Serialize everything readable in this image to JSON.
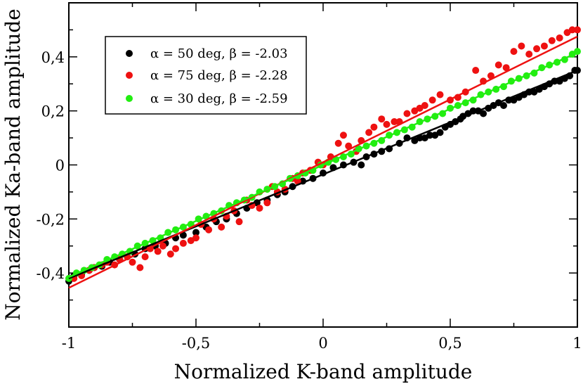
{
  "chart_data": {
    "type": "scatter",
    "title": "",
    "xlabel": "Normalized K-band amplitude",
    "ylabel": "Normalized Ka-band amplitude",
    "xlim": [
      -1,
      1
    ],
    "ylim": [
      -0.6,
      0.6
    ],
    "x_ticks": [
      -1,
      -0.5,
      0,
      0.5,
      1
    ],
    "x_tick_labels": [
      "-1",
      "-0,5",
      "0",
      "0,5",
      "1"
    ],
    "y_ticks": [
      -0.4,
      -0.2,
      0,
      0.2,
      0.4
    ],
    "y_tick_labels": [
      "-0,4",
      "-0,2",
      "0",
      "0,2",
      "0,4"
    ],
    "grid": false,
    "legend_position": "top-left",
    "series": [
      {
        "name": "α = 50 deg, β = -2.03",
        "color": "#000000",
        "fit": {
          "slope": 0.385,
          "intercept": -0.035
        },
        "points": [
          [
            -1.0,
            -0.43
          ],
          [
            -0.98,
            -0.41
          ],
          [
            -0.95,
            -0.405
          ],
          [
            -0.92,
            -0.39
          ],
          [
            -0.9,
            -0.38
          ],
          [
            -0.87,
            -0.375
          ],
          [
            -0.84,
            -0.36
          ],
          [
            -0.8,
            -0.35
          ],
          [
            -0.77,
            -0.34
          ],
          [
            -0.74,
            -0.33
          ],
          [
            -0.7,
            -0.31
          ],
          [
            -0.66,
            -0.3
          ],
          [
            -0.62,
            -0.29
          ],
          [
            -0.58,
            -0.27
          ],
          [
            -0.55,
            -0.26
          ],
          [
            -0.5,
            -0.25
          ],
          [
            -0.46,
            -0.23
          ],
          [
            -0.42,
            -0.21
          ],
          [
            -0.38,
            -0.2
          ],
          [
            -0.34,
            -0.18
          ],
          [
            -0.3,
            -0.16
          ],
          [
            -0.26,
            -0.14
          ],
          [
            -0.22,
            -0.13
          ],
          [
            -0.18,
            -0.11
          ],
          [
            -0.15,
            -0.1
          ],
          [
            -0.12,
            -0.08
          ],
          [
            -0.08,
            -0.06
          ],
          [
            -0.04,
            -0.05
          ],
          [
            0.0,
            -0.03
          ],
          [
            0.04,
            -0.01
          ],
          [
            0.08,
            0.0
          ],
          [
            0.12,
            0.01
          ],
          [
            0.15,
            0.0
          ],
          [
            0.17,
            0.03
          ],
          [
            0.2,
            0.04
          ],
          [
            0.23,
            0.05
          ],
          [
            0.26,
            0.06
          ],
          [
            0.3,
            0.08
          ],
          [
            0.33,
            0.1
          ],
          [
            0.36,
            0.09
          ],
          [
            0.38,
            0.1
          ],
          [
            0.4,
            0.1
          ],
          [
            0.42,
            0.11
          ],
          [
            0.44,
            0.11
          ],
          [
            0.46,
            0.12
          ],
          [
            0.48,
            0.14
          ],
          [
            0.5,
            0.15
          ],
          [
            0.52,
            0.16
          ],
          [
            0.54,
            0.17
          ],
          [
            0.55,
            0.18
          ],
          [
            0.57,
            0.19
          ],
          [
            0.59,
            0.2
          ],
          [
            0.61,
            0.2
          ],
          [
            0.63,
            0.19
          ],
          [
            0.65,
            0.21
          ],
          [
            0.67,
            0.22
          ],
          [
            0.69,
            0.23
          ],
          [
            0.71,
            0.22
          ],
          [
            0.73,
            0.24
          ],
          [
            0.75,
            0.24
          ],
          [
            0.77,
            0.25
          ],
          [
            0.79,
            0.26
          ],
          [
            0.81,
            0.27
          ],
          [
            0.83,
            0.27
          ],
          [
            0.85,
            0.28
          ],
          [
            0.87,
            0.29
          ],
          [
            0.89,
            0.3
          ],
          [
            0.91,
            0.31
          ],
          [
            0.93,
            0.31
          ],
          [
            0.95,
            0.32
          ],
          [
            0.97,
            0.33
          ],
          [
            0.99,
            0.35
          ],
          [
            1.0,
            0.35
          ]
        ]
      },
      {
        "name": "α = 75 deg, β = -2.28",
        "color": "#ee1111",
        "fit": {
          "slope": 0.465,
          "intercept": 0.01
        },
        "points": [
          [
            -0.98,
            -0.42
          ],
          [
            -0.95,
            -0.41
          ],
          [
            -0.92,
            -0.39
          ],
          [
            -0.9,
            -0.38
          ],
          [
            -0.87,
            -0.37
          ],
          [
            -0.85,
            -0.36
          ],
          [
            -0.82,
            -0.37
          ],
          [
            -0.8,
            -0.35
          ],
          [
            -0.77,
            -0.34
          ],
          [
            -0.75,
            -0.36
          ],
          [
            -0.72,
            -0.38
          ],
          [
            -0.7,
            -0.34
          ],
          [
            -0.68,
            -0.31
          ],
          [
            -0.65,
            -0.32
          ],
          [
            -0.63,
            -0.3
          ],
          [
            -0.6,
            -0.33
          ],
          [
            -0.58,
            -0.31
          ],
          [
            -0.55,
            -0.29
          ],
          [
            -0.52,
            -0.28
          ],
          [
            -0.5,
            -0.27
          ],
          [
            -0.48,
            -0.22
          ],
          [
            -0.45,
            -0.24
          ],
          [
            -0.43,
            -0.2
          ],
          [
            -0.4,
            -0.23
          ],
          [
            -0.38,
            -0.19
          ],
          [
            -0.35,
            -0.17
          ],
          [
            -0.33,
            -0.21
          ],
          [
            -0.3,
            -0.13
          ],
          [
            -0.28,
            -0.15
          ],
          [
            -0.25,
            -0.16
          ],
          [
            -0.22,
            -0.14
          ],
          [
            -0.2,
            -0.08
          ],
          [
            -0.18,
            -0.1
          ],
          [
            -0.15,
            -0.09
          ],
          [
            -0.12,
            -0.05
          ],
          [
            -0.1,
            -0.06
          ],
          [
            -0.08,
            -0.03
          ],
          [
            -0.05,
            -0.02
          ],
          [
            -0.02,
            0.01
          ],
          [
            0.0,
            0.0
          ],
          [
            0.03,
            0.03
          ],
          [
            0.06,
            0.08
          ],
          [
            0.08,
            0.11
          ],
          [
            0.1,
            0.07
          ],
          [
            0.13,
            0.05
          ],
          [
            0.15,
            0.09
          ],
          [
            0.18,
            0.12
          ],
          [
            0.2,
            0.14
          ],
          [
            0.23,
            0.17
          ],
          [
            0.25,
            0.15
          ],
          [
            0.28,
            0.16
          ],
          [
            0.3,
            0.16
          ],
          [
            0.33,
            0.19
          ],
          [
            0.36,
            0.2
          ],
          [
            0.38,
            0.21
          ],
          [
            0.4,
            0.22
          ],
          [
            0.43,
            0.24
          ],
          [
            0.46,
            0.26
          ],
          [
            0.5,
            0.24
          ],
          [
            0.53,
            0.25
          ],
          [
            0.56,
            0.27
          ],
          [
            0.6,
            0.35
          ],
          [
            0.63,
            0.31
          ],
          [
            0.66,
            0.33
          ],
          [
            0.69,
            0.37
          ],
          [
            0.72,
            0.36
          ],
          [
            0.75,
            0.42
          ],
          [
            0.78,
            0.44
          ],
          [
            0.81,
            0.41
          ],
          [
            0.84,
            0.43
          ],
          [
            0.87,
            0.44
          ],
          [
            0.9,
            0.46
          ],
          [
            0.93,
            0.47
          ],
          [
            0.96,
            0.49
          ],
          [
            0.98,
            0.5
          ],
          [
            1.0,
            0.5
          ]
        ]
      },
      {
        "name": "α = 30 deg, β = -2.59",
        "color": "#22ee11",
        "fit": {
          "slope": 0.415,
          "intercept": 0.0
        },
        "points": [
          [
            -1.0,
            -0.42
          ],
          [
            -0.97,
            -0.4
          ],
          [
            -0.94,
            -0.39
          ],
          [
            -0.91,
            -0.38
          ],
          [
            -0.88,
            -0.37
          ],
          [
            -0.85,
            -0.35
          ],
          [
            -0.82,
            -0.34
          ],
          [
            -0.79,
            -0.33
          ],
          [
            -0.76,
            -0.32
          ],
          [
            -0.73,
            -0.3
          ],
          [
            -0.7,
            -0.29
          ],
          [
            -0.67,
            -0.28
          ],
          [
            -0.64,
            -0.27
          ],
          [
            -0.61,
            -0.25
          ],
          [
            -0.58,
            -0.24
          ],
          [
            -0.55,
            -0.23
          ],
          [
            -0.52,
            -0.22
          ],
          [
            -0.49,
            -0.2
          ],
          [
            -0.46,
            -0.19
          ],
          [
            -0.43,
            -0.18
          ],
          [
            -0.4,
            -0.17
          ],
          [
            -0.37,
            -0.15
          ],
          [
            -0.34,
            -0.14
          ],
          [
            -0.31,
            -0.13
          ],
          [
            -0.28,
            -0.12
          ],
          [
            -0.25,
            -0.1
          ],
          [
            -0.22,
            -0.09
          ],
          [
            -0.19,
            -0.08
          ],
          [
            -0.16,
            -0.07
          ],
          [
            -0.13,
            -0.05
          ],
          [
            -0.1,
            -0.04
          ],
          [
            -0.07,
            -0.03
          ],
          [
            -0.04,
            -0.02
          ],
          [
            -0.01,
            0.0
          ],
          [
            0.02,
            0.01
          ],
          [
            0.05,
            0.02
          ],
          [
            0.08,
            0.03
          ],
          [
            0.11,
            0.04
          ],
          [
            0.14,
            0.06
          ],
          [
            0.17,
            0.07
          ],
          [
            0.2,
            0.08
          ],
          [
            0.23,
            0.09
          ],
          [
            0.26,
            0.11
          ],
          [
            0.29,
            0.12
          ],
          [
            0.32,
            0.13
          ],
          [
            0.35,
            0.14
          ],
          [
            0.38,
            0.16
          ],
          [
            0.41,
            0.17
          ],
          [
            0.44,
            0.18
          ],
          [
            0.47,
            0.19
          ],
          [
            0.5,
            0.21
          ],
          [
            0.53,
            0.22
          ],
          [
            0.56,
            0.23
          ],
          [
            0.59,
            0.24
          ],
          [
            0.62,
            0.26
          ],
          [
            0.65,
            0.27
          ],
          [
            0.68,
            0.28
          ],
          [
            0.71,
            0.29
          ],
          [
            0.74,
            0.31
          ],
          [
            0.77,
            0.32
          ],
          [
            0.8,
            0.33
          ],
          [
            0.83,
            0.34
          ],
          [
            0.86,
            0.36
          ],
          [
            0.89,
            0.37
          ],
          [
            0.92,
            0.38
          ],
          [
            0.95,
            0.39
          ],
          [
            0.98,
            0.41
          ],
          [
            1.0,
            0.42
          ]
        ]
      }
    ]
  }
}
